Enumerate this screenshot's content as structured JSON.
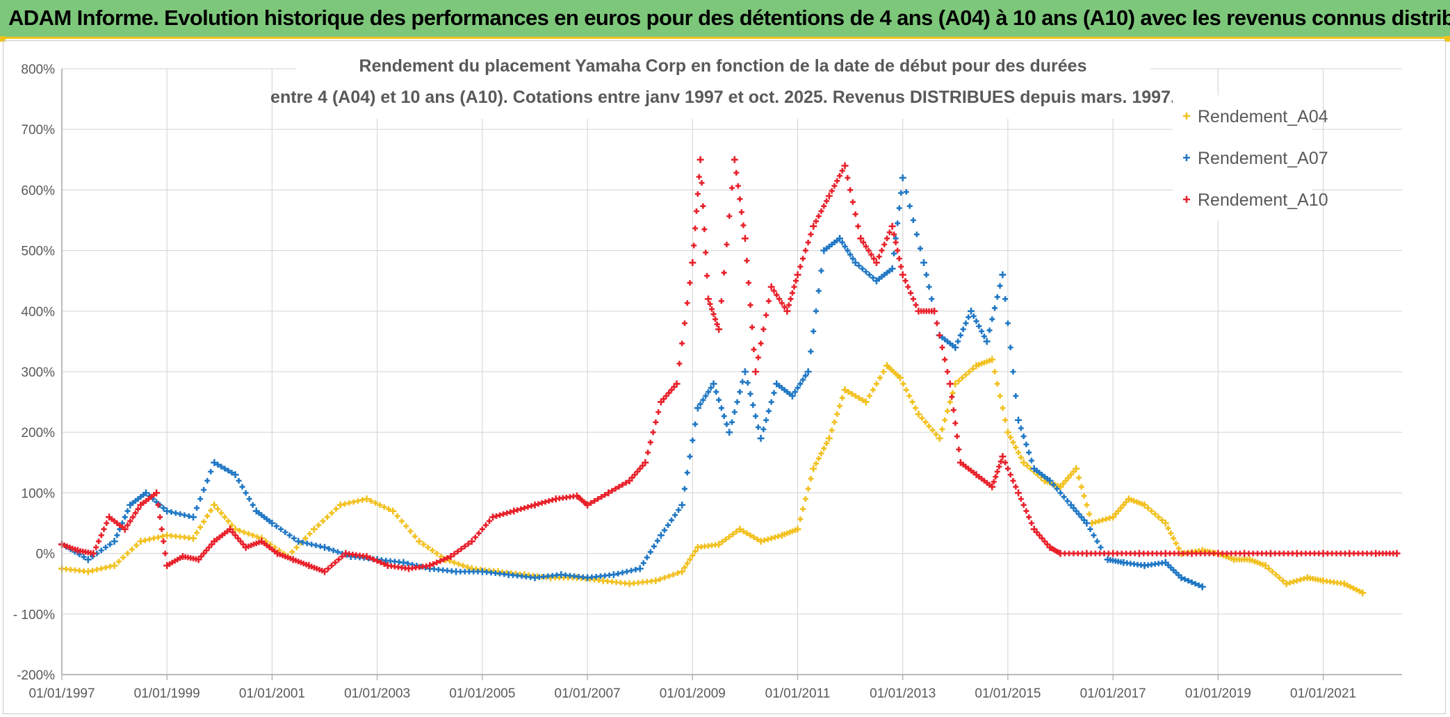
{
  "header": {
    "title": "ADAM Informe. Evolution historique des performances en euros pour des détentions de 4 ans (A04) à 10 ans (A10) avec les revenus connus distribués"
  },
  "chart_data": {
    "type": "scatter",
    "title_lines": [
      "Rendement du placement Yamaha Corp en fonction de la date de début pour des durées",
      "entre 4 (A04) et 10 ans (A10). Cotations entre janv 1997 et oct. 2025. Revenus DISTRIBUES depuis mars. 1997."
    ],
    "y_axis": {
      "min": -200,
      "max": 800,
      "step": 100,
      "tick_labels": [
        "-200%",
        "- 100%",
        "0%",
        "100%",
        "200%",
        "300%",
        "400%",
        "500%",
        "600%",
        "700%",
        "800%"
      ]
    },
    "x_axis": {
      "min": 1997.0,
      "max": 2022.5,
      "ticks": [
        1997,
        1999,
        2001,
        2003,
        2005,
        2007,
        2009,
        2011,
        2013,
        2015,
        2017,
        2019,
        2021
      ],
      "tick_labels": [
        "01/01/1997",
        "01/01/1999",
        "01/01/2001",
        "01/01/2003",
        "01/01/2005",
        "01/01/2007",
        "01/01/2009",
        "01/01/2011",
        "01/01/2013",
        "01/01/2015",
        "01/01/2017",
        "01/01/2019",
        "01/01/2021"
      ]
    },
    "legend_position": "right",
    "series": [
      {
        "name": "Rendement_A04",
        "color": "#f2c01e",
        "x": [
          1997.0,
          1997.5,
          1998.0,
          1998.5,
          1999.0,
          1999.5,
          1999.9,
          2000.3,
          2000.8,
          2001.3,
          2001.8,
          2002.3,
          2002.8,
          2003.3,
          2003.8,
          2004.3,
          2004.8,
          2005.3,
          2005.8,
          2006.3,
          2006.8,
          2007.3,
          2007.8,
          2008.3,
          2008.8,
          2009.1,
          2009.5,
          2009.9,
          2010.3,
          2010.7,
          2011.0,
          2011.3,
          2011.6,
          2011.9,
          2012.3,
          2012.7,
          2012.95,
          2013.3,
          2013.7,
          2014.0,
          2014.4,
          2014.7,
          2015.0,
          2015.3,
          2015.7,
          2016.0,
          2016.3,
          2016.6,
          2017.0,
          2017.3,
          2017.6,
          2018.0,
          2018.3,
          2018.7,
          2019.0,
          2019.3,
          2019.6,
          2019.9,
          2020.3,
          2020.7,
          2021.0,
          2021.4,
          2021.75
        ],
        "y": [
          -25,
          -30,
          -20,
          20,
          30,
          25,
          80,
          40,
          25,
          -5,
          40,
          80,
          90,
          70,
          20,
          -10,
          -25,
          -30,
          -35,
          -40,
          -40,
          -45,
          -50,
          -45,
          -30,
          10,
          15,
          40,
          20,
          30,
          40,
          140,
          190,
          270,
          250,
          310,
          290,
          230,
          190,
          280,
          310,
          320,
          200,
          150,
          120,
          110,
          140,
          50,
          60,
          90,
          80,
          50,
          0,
          5,
          0,
          -10,
          -10,
          -20,
          -50,
          -40,
          -45,
          -50,
          -65
        ]
      },
      {
        "name": "Rendement_A07",
        "color": "#1f77c4",
        "x": [
          1997.0,
          1997.5,
          1998.0,
          1998.3,
          1998.6,
          1999.0,
          1999.5,
          1999.9,
          2000.3,
          2000.7,
          2001.0,
          2001.5,
          2002.0,
          2002.5,
          2003.0,
          2003.5,
          2004.0,
          2004.5,
          2005.0,
          2005.5,
          2006.0,
          2006.5,
          2007.0,
          2007.5,
          2008.0,
          2008.4,
          2008.8,
          2009.1,
          2009.4,
          2009.7,
          2010.0,
          2010.3,
          2010.6,
          2010.9,
          2011.2,
          2011.5,
          2011.8,
          2012.1,
          2012.5,
          2012.8,
          2013.0,
          2013.4,
          2013.7,
          2014.0,
          2014.3,
          2014.6,
          2014.9,
          2015.2,
          2015.5,
          2015.8,
          2016.2,
          2016.5,
          2016.9,
          2017.2,
          2017.6,
          2018.0,
          2018.3,
          2018.7
        ],
        "y": [
          15,
          -10,
          20,
          80,
          100,
          70,
          60,
          150,
          130,
          70,
          50,
          20,
          10,
          -5,
          -10,
          -15,
          -25,
          -30,
          -30,
          -35,
          -40,
          -35,
          -40,
          -35,
          -25,
          30,
          80,
          240,
          280,
          200,
          300,
          190,
          280,
          260,
          300,
          500,
          520,
          480,
          450,
          470,
          620,
          480,
          360,
          340,
          400,
          350,
          460,
          220,
          140,
          120,
          80,
          50,
          -10,
          -15,
          -20,
          -15,
          -40,
          -55
        ]
      },
      {
        "name": "Rendement_A10",
        "color": "#e8202a",
        "x": [
          1997.0,
          1997.3,
          1997.6,
          1997.9,
          1998.2,
          1998.5,
          1998.8,
          1999.0,
          1999.3,
          1999.6,
          1999.9,
          2000.2,
          2000.5,
          2000.8,
          2001.1,
          2001.4,
          2001.7,
          2002.0,
          2002.4,
          2002.8,
          2003.2,
          2003.6,
          2004.0,
          2004.4,
          2004.8,
          2005.2,
          2005.6,
          2006.0,
          2006.4,
          2006.8,
          2007.0,
          2007.4,
          2007.8,
          2008.1,
          2008.4,
          2008.7,
          2009.0,
          2009.15,
          2009.3,
          2009.5,
          2009.8,
          2010.0,
          2010.2,
          2010.5,
          2010.8,
          2011.0,
          2011.3,
          2011.6,
          2011.9,
          2012.2,
          2012.5,
          2012.8,
          2013.0,
          2013.3,
          2013.6,
          2013.9,
          2014.1,
          2014.4,
          2014.7,
          2014.9,
          2015.2,
          2015.5,
          2015.8,
          2016.0,
          2016.5,
          2017.0,
          2017.5,
          2018.0,
          2018.5,
          2019.0,
          2019.5,
          2020.0,
          2020.5,
          2021.0,
          2021.5,
          2022.0,
          2022.4
        ],
        "y": [
          15,
          5,
          0,
          60,
          40,
          80,
          100,
          -20,
          -5,
          -10,
          20,
          40,
          10,
          20,
          0,
          -10,
          -20,
          -30,
          0,
          -5,
          -20,
          -25,
          -20,
          -5,
          20,
          60,
          70,
          80,
          90,
          95,
          80,
          100,
          120,
          150,
          250,
          280,
          480,
          650,
          420,
          370,
          650,
          520,
          300,
          440,
          400,
          460,
          540,
          590,
          640,
          520,
          480,
          540,
          460,
          400,
          400,
          280,
          150,
          130,
          110,
          160,
          100,
          40,
          10,
          0,
          0,
          0,
          0,
          0,
          0,
          0,
          0,
          0,
          0,
          0,
          0,
          0,
          0
        ]
      }
    ]
  }
}
